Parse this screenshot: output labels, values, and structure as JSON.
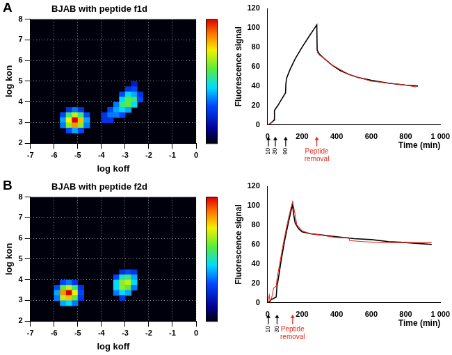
{
  "chart_data": [
    {
      "type": "heatmap",
      "panel": "A",
      "title": "BJAB with peptide f1d",
      "x_label": "log koff",
      "y_label": "log kon",
      "xlim": [
        -7,
        0
      ],
      "xticks": [
        -7,
        -6,
        -5,
        -4,
        -3,
        -2,
        -1,
        0
      ],
      "ylim": [
        2,
        8
      ],
      "yticks": [
        2,
        3,
        4,
        5,
        6,
        7,
        8
      ],
      "grid": true,
      "cell_width": 0.25,
      "cell_height": 0.25,
      "colorbar_range": [
        0,
        1
      ],
      "cells": [
        [
          -5.375,
          3.625,
          0.25
        ],
        [
          -5.125,
          3.625,
          0.35
        ],
        [
          -4.875,
          3.625,
          0.25
        ],
        [
          -5.625,
          3.375,
          0.3
        ],
        [
          -5.375,
          3.375,
          0.55
        ],
        [
          -5.125,
          3.375,
          0.7
        ],
        [
          -4.875,
          3.375,
          0.55
        ],
        [
          -4.625,
          3.375,
          0.3
        ],
        [
          -5.625,
          3.125,
          0.4
        ],
        [
          -5.375,
          3.125,
          0.75
        ],
        [
          -5.125,
          3.125,
          1.0
        ],
        [
          -4.875,
          3.125,
          0.8
        ],
        [
          -4.625,
          3.125,
          0.4
        ],
        [
          -5.625,
          2.875,
          0.35
        ],
        [
          -5.375,
          2.875,
          0.65
        ],
        [
          -5.125,
          2.875,
          0.85
        ],
        [
          -4.875,
          2.875,
          0.65
        ],
        [
          -4.625,
          2.875,
          0.35
        ],
        [
          -5.375,
          2.625,
          0.3
        ],
        [
          -5.125,
          2.625,
          0.4
        ],
        [
          -4.875,
          2.625,
          0.3
        ],
        [
          -2.625,
          4.875,
          0.2
        ],
        [
          -2.875,
          4.625,
          0.25
        ],
        [
          -2.625,
          4.625,
          0.3
        ],
        [
          -3.125,
          4.375,
          0.3
        ],
        [
          -2.875,
          4.375,
          0.45
        ],
        [
          -2.625,
          4.375,
          0.4
        ],
        [
          -2.375,
          4.375,
          0.25
        ],
        [
          -3.125,
          4.125,
          0.45
        ],
        [
          -2.875,
          4.125,
          0.6
        ],
        [
          -2.625,
          4.125,
          0.55
        ],
        [
          -2.375,
          4.125,
          0.3
        ],
        [
          -3.375,
          3.875,
          0.35
        ],
        [
          -3.125,
          3.875,
          0.55
        ],
        [
          -2.875,
          3.875,
          0.6
        ],
        [
          -2.625,
          3.875,
          0.45
        ],
        [
          -3.625,
          3.625,
          0.3
        ],
        [
          -3.375,
          3.625,
          0.4
        ],
        [
          -3.125,
          3.625,
          0.45
        ],
        [
          -2.875,
          3.625,
          0.4
        ],
        [
          -3.875,
          3.375,
          0.25
        ],
        [
          -3.625,
          3.375,
          0.35
        ],
        [
          -3.375,
          3.375,
          0.35
        ],
        [
          -3.125,
          3.375,
          0.3
        ],
        [
          -3.875,
          3.125,
          0.25
        ],
        [
          -3.625,
          3.125,
          0.25
        ]
      ]
    },
    {
      "type": "line",
      "x_label": "Time (min)",
      "y_label": "Fluorescence signal",
      "xlim": [
        0,
        1000
      ],
      "xticks": [
        0,
        200,
        400,
        600,
        800,
        {
          "value": 1000,
          "label": "1 000"
        }
      ],
      "ylim": [
        0,
        120
      ],
      "yticks": [
        0,
        20,
        40,
        60,
        80,
        100,
        120
      ],
      "grid": false,
      "series": [
        {
          "color": "#000000",
          "x": [
            0,
            5,
            20,
            38,
            40,
            60,
            80,
            104,
            106,
            110,
            130,
            160,
            200,
            240,
            270,
            285,
            287,
            300,
            330,
            370,
            420,
            470,
            520,
            600,
            700,
            800,
            870
          ],
          "values": [
            0,
            0,
            2,
            5,
            15,
            20,
            26,
            33,
            42,
            48,
            57,
            68,
            80,
            91,
            99,
            103,
            77,
            73,
            68,
            62,
            56,
            52,
            49,
            46,
            43,
            41,
            40
          ]
        },
        {
          "color": "#e8291c",
          "x": [
            0,
            10,
            30,
            200,
            287,
            300,
            330,
            370,
            420,
            470,
            520,
            560,
            600,
            650,
            700,
            750,
            800,
            860
          ],
          "values": [
            0,
            1,
            3,
            null,
            75,
            72,
            68,
            62,
            57,
            52,
            49,
            47,
            45,
            44,
            43,
            42,
            41,
            39
          ]
        }
      ],
      "annotations": [
        {
          "x": 5,
          "text": "10",
          "color": "#000000"
        },
        {
          "x": 45,
          "text": "30",
          "color": "#000000"
        },
        {
          "x": 105,
          "text": "90",
          "color": "#000000"
        },
        {
          "x": 285,
          "text": "Peptide removal",
          "color": "#e8291c"
        }
      ]
    },
    {
      "type": "heatmap",
      "panel": "B",
      "title": "BJAB with peptide f2d",
      "x_label": "log koff",
      "y_label": "log kon",
      "xlim": [
        -7,
        0
      ],
      "xticks": [
        -7,
        -6,
        -5,
        -4,
        -3,
        -2,
        -1,
        0
      ],
      "ylim": [
        2,
        8
      ],
      "yticks": [
        2,
        3,
        4,
        5,
        6,
        7,
        8
      ],
      "grid": true,
      "cell_width": 0.25,
      "cell_height": 0.25,
      "colorbar_range": [
        0,
        1
      ],
      "cells": [
        [
          -5.625,
          3.875,
          0.3
        ],
        [
          -5.375,
          3.875,
          0.35
        ],
        [
          -5.125,
          3.875,
          0.25
        ],
        [
          -5.875,
          3.625,
          0.3
        ],
        [
          -5.625,
          3.625,
          0.6
        ],
        [
          -5.375,
          3.625,
          0.7
        ],
        [
          -5.125,
          3.625,
          0.55
        ],
        [
          -4.875,
          3.625,
          0.25
        ],
        [
          -5.875,
          3.375,
          0.4
        ],
        [
          -5.625,
          3.375,
          0.85
        ],
        [
          -5.375,
          3.375,
          1.0
        ],
        [
          -5.125,
          3.375,
          0.75
        ],
        [
          -4.875,
          3.375,
          0.3
        ],
        [
          -5.875,
          3.125,
          0.35
        ],
        [
          -5.625,
          3.125,
          0.7
        ],
        [
          -5.375,
          3.125,
          0.8
        ],
        [
          -5.125,
          3.125,
          0.6
        ],
        [
          -4.875,
          3.125,
          0.25
        ],
        [
          -5.625,
          2.875,
          0.4
        ],
        [
          -5.375,
          2.875,
          0.45
        ],
        [
          -5.125,
          2.875,
          0.35
        ],
        [
          -3.125,
          4.375,
          0.25
        ],
        [
          -2.875,
          4.375,
          0.3
        ],
        [
          -2.625,
          4.375,
          0.25
        ],
        [
          -3.375,
          4.125,
          0.3
        ],
        [
          -3.125,
          4.125,
          0.5
        ],
        [
          -2.875,
          4.125,
          0.55
        ],
        [
          -2.625,
          4.125,
          0.4
        ],
        [
          -3.375,
          3.875,
          0.45
        ],
        [
          -3.125,
          3.875,
          0.65
        ],
        [
          -2.875,
          3.875,
          0.7
        ],
        [
          -2.625,
          3.875,
          0.45
        ],
        [
          -3.375,
          3.625,
          0.45
        ],
        [
          -3.125,
          3.625,
          0.65
        ],
        [
          -2.875,
          3.625,
          0.6
        ],
        [
          -2.625,
          3.625,
          0.35
        ],
        [
          -3.375,
          3.375,
          0.35
        ],
        [
          -3.125,
          3.375,
          0.45
        ],
        [
          -2.875,
          3.375,
          0.4
        ],
        [
          -3.125,
          3.125,
          0.25
        ]
      ]
    },
    {
      "type": "line",
      "x_label": "Time (min)",
      "y_label": "Fluorescence signal",
      "xlim": [
        0,
        1000
      ],
      "xticks": [
        0,
        200,
        400,
        600,
        800,
        {
          "value": 1000,
          "label": "1 000"
        }
      ],
      "ylim": [
        0,
        120
      ],
      "yticks": [
        0,
        20,
        40,
        60,
        80,
        100,
        120
      ],
      "grid": false,
      "series": [
        {
          "color": "#000000",
          "x": [
            0,
            5,
            20,
            50,
            55,
            60,
            80,
            100,
            120,
            135,
            145,
            150,
            160,
            180,
            200,
            250,
            300,
            400,
            500,
            600,
            700,
            800,
            950
          ],
          "values": [
            0,
            0,
            3,
            6,
            18,
            22,
            45,
            65,
            82,
            94,
            101,
            92,
            82,
            76,
            73,
            71,
            70,
            68,
            66,
            65,
            63,
            62,
            60
          ]
        },
        {
          "color": "#e8291c",
          "x": [
            0,
            10,
            15,
            25,
            35,
            50,
            55,
            70,
            90,
            110,
            130,
            145,
            155,
            170,
            200,
            250,
            300,
            400,
            470,
            475,
            550,
            650,
            750,
            850,
            950
          ],
          "values": [
            0,
            8,
            0,
            6,
            15,
            17,
            25,
            40,
            60,
            78,
            94,
            104,
            95,
            80,
            74,
            71,
            70,
            67,
            67,
            64,
            63,
            62,
            62,
            62,
            62
          ]
        }
      ],
      "annotations": [
        {
          "x": 5,
          "text": "10",
          "color": "#000000"
        },
        {
          "x": 55,
          "text": "30",
          "color": "#000000"
        },
        {
          "x": 145,
          "text": "Peptide removal",
          "color": "#e8291c"
        }
      ]
    }
  ]
}
